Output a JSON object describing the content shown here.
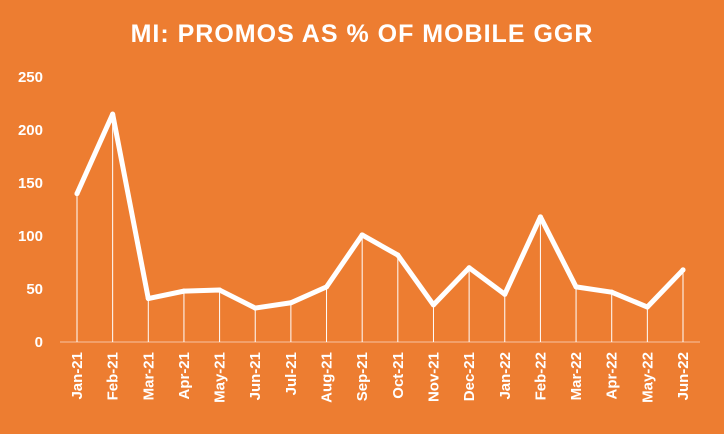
{
  "chart_data": {
    "type": "line",
    "title": "MI: PROMOS AS % OF MOBILE GGR",
    "xlabel": "",
    "ylabel": "",
    "categories": [
      "Jan-21",
      "Feb-21",
      "Mar-21",
      "Apr-21",
      "May-21",
      "Jun-21",
      "Jul-21",
      "Aug-21",
      "Sep-21",
      "Oct-21",
      "Nov-21",
      "Dec-21",
      "Jan-22",
      "Feb-22",
      "Mar-22",
      "Apr-22",
      "May-22",
      "Jun-22"
    ],
    "series": [
      {
        "values": [
          140,
          215,
          41,
          48,
          49,
          32,
          37,
          52,
          101,
          82,
          35,
          70,
          45,
          118,
          52,
          47,
          33,
          68
        ]
      }
    ],
    "ylim": [
      0,
      250
    ],
    "yticks": [
      0,
      50,
      100,
      150,
      200,
      250
    ],
    "grid": false,
    "drop_lines": true,
    "colors": {
      "background": "#ED7D31",
      "line": "#ffffff",
      "text": "#ffffff"
    }
  }
}
